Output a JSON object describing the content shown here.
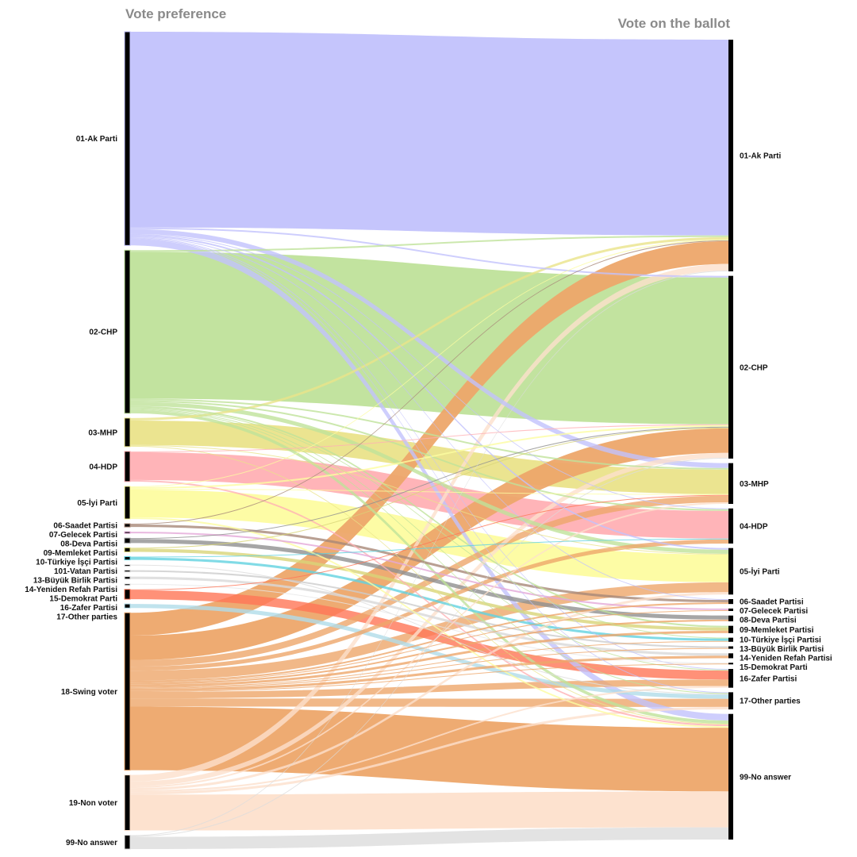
{
  "titles": {
    "left": "Vote preference",
    "right": "Vote on the ballot"
  },
  "left_nodes": [
    {
      "id": "L01",
      "label": "01-Ak Parti",
      "color": "#c2c2fc"
    },
    {
      "id": "L02",
      "label": "02-CHP",
      "color": "#bfe29a"
    },
    {
      "id": "L03",
      "label": "03-MHP",
      "color": "#eae38a"
    },
    {
      "id": "L04",
      "label": "04-HDP",
      "color": "#ffb0b4"
    },
    {
      "id": "L05",
      "label": "05-İyi Parti",
      "color": "#fdfca0"
    },
    {
      "id": "L06",
      "label": "06-Saadet Partisi",
      "color": "#a88878"
    },
    {
      "id": "L07",
      "label": "07-Gelecek Partisi",
      "color": "#e4a8d8"
    },
    {
      "id": "L08",
      "label": "08-Deva Partisi",
      "color": "#909090"
    },
    {
      "id": "L09",
      "label": "09-Memleket Partisi",
      "color": "#d8d478"
    },
    {
      "id": "L10",
      "label": "10-Türkiye İşçi Partisi",
      "color": "#62d2e0"
    },
    {
      "id": "L101",
      "label": "101-Vatan Partisi",
      "color": "#dddddd"
    },
    {
      "id": "L13",
      "label": "13-Büyük Birlik Partisi",
      "color": "#cccccc"
    },
    {
      "id": "L14",
      "label": "14-Yeniden Refah Partisi",
      "color": "#d8d8d8"
    },
    {
      "id": "L15",
      "label": "15-Demokrat Parti",
      "color": "#e6e6e6"
    },
    {
      "id": "L16",
      "label": "16-Zafer Partisi",
      "color": "#ff7656"
    },
    {
      "id": "L17",
      "label": "17-Other parties",
      "color": "#b0dce8"
    },
    {
      "id": "L18",
      "label": "18-Swing voter",
      "color": "#eda66a"
    },
    {
      "id": "L19",
      "label": "19-Non voter",
      "color": "#fde0cc"
    },
    {
      "id": "L99",
      "label": "99-No answer",
      "color": "#dcdcdc"
    }
  ],
  "right_nodes": [
    {
      "id": "R01",
      "label": "01-Ak Parti"
    },
    {
      "id": "R02",
      "label": "02-CHP"
    },
    {
      "id": "R03",
      "label": "03-MHP"
    },
    {
      "id": "R04",
      "label": "04-HDP"
    },
    {
      "id": "R05",
      "label": "05-İyi Parti"
    },
    {
      "id": "R06",
      "label": "06-Saadet Partisi"
    },
    {
      "id": "R07",
      "label": "07-Gelecek Partisi"
    },
    {
      "id": "R08",
      "label": "08-Deva Partisi"
    },
    {
      "id": "R09",
      "label": "09-Memleket Partisi"
    },
    {
      "id": "R10",
      "label": "10-Türkiye İşçi Partisi"
    },
    {
      "id": "R13",
      "label": "13-Büyük Birlik Partisi"
    },
    {
      "id": "R14",
      "label": "14-Yeniden Refah Partisi"
    },
    {
      "id": "R15",
      "label": "15-Demokrat Parti"
    },
    {
      "id": "R16",
      "label": "16-Zafer Partisi"
    },
    {
      "id": "R17",
      "label": "17-Other parties"
    },
    {
      "id": "R99",
      "label": "99-No answer"
    }
  ],
  "node_bar_color": "#000000",
  "flows": [
    [
      "L01",
      "R01",
      240
    ],
    [
      "L01",
      "R02",
      2
    ],
    [
      "L01",
      "R03",
      6
    ],
    [
      "L01",
      "R04",
      1
    ],
    [
      "L01",
      "R05",
      2
    ],
    [
      "L01",
      "R06",
      1
    ],
    [
      "L01",
      "R16",
      1
    ],
    [
      "L01",
      "R17",
      1
    ],
    [
      "L01",
      "R99",
      8
    ],
    [
      "L02",
      "R01",
      2
    ],
    [
      "L02",
      "R02",
      180
    ],
    [
      "L02",
      "R03",
      2
    ],
    [
      "L02",
      "R04",
      2
    ],
    [
      "L02",
      "R05",
      5
    ],
    [
      "L02",
      "R09",
      2
    ],
    [
      "L02",
      "R10",
      1
    ],
    [
      "L02",
      "R16",
      1
    ],
    [
      "L02",
      "R17",
      1
    ],
    [
      "L02",
      "R99",
      4
    ],
    [
      "L03",
      "R01",
      3
    ],
    [
      "L03",
      "R03",
      30
    ],
    [
      "L03",
      "R05",
      1
    ],
    [
      "L03",
      "R99",
      1
    ],
    [
      "L04",
      "R02",
      1
    ],
    [
      "L04",
      "R04",
      34
    ],
    [
      "L04",
      "R99",
      2
    ],
    [
      "L05",
      "R01",
      1
    ],
    [
      "L05",
      "R02",
      2
    ],
    [
      "L05",
      "R03",
      1
    ],
    [
      "L05",
      "R05",
      34
    ],
    [
      "L05",
      "R99",
      2
    ],
    [
      "L06",
      "R01",
      1
    ],
    [
      "L06",
      "R06",
      3
    ],
    [
      "L07",
      "R07",
      2
    ],
    [
      "L08",
      "R02",
      1
    ],
    [
      "L08",
      "R08",
      5
    ],
    [
      "L09",
      "R02",
      1
    ],
    [
      "L09",
      "R09",
      4
    ],
    [
      "L10",
      "R04",
      1
    ],
    [
      "L10",
      "R10",
      3
    ],
    [
      "L101",
      "R17",
      1
    ],
    [
      "L13",
      "R13",
      2
    ],
    [
      "L14",
      "R14",
      3
    ],
    [
      "L15",
      "R15",
      1
    ],
    [
      "L16",
      "R03",
      1
    ],
    [
      "L16",
      "R16",
      11
    ],
    [
      "L17",
      "R17",
      5
    ],
    [
      "L18",
      "R01",
      28
    ],
    [
      "L18",
      "R02",
      30
    ],
    [
      "L18",
      "R03",
      8
    ],
    [
      "L18",
      "R04",
      5
    ],
    [
      "L18",
      "R05",
      12
    ],
    [
      "L18",
      "R06",
      2
    ],
    [
      "L18",
      "R07",
      1
    ],
    [
      "L18",
      "R08",
      2
    ],
    [
      "L18",
      "R09",
      3
    ],
    [
      "L18",
      "R10",
      1
    ],
    [
      "L18",
      "R13",
      1
    ],
    [
      "L18",
      "R14",
      3
    ],
    [
      "L18",
      "R15",
      1
    ],
    [
      "L18",
      "R16",
      8
    ],
    [
      "L18",
      "R17",
      10
    ],
    [
      "L18",
      "R99",
      78
    ],
    [
      "L19",
      "R01",
      8
    ],
    [
      "L19",
      "R02",
      6
    ],
    [
      "L19",
      "R03",
      2
    ],
    [
      "L19",
      "R05",
      3
    ],
    [
      "L19",
      "R16",
      2
    ],
    [
      "L19",
      "R17",
      3
    ],
    [
      "L19",
      "R99",
      44
    ],
    [
      "L99",
      "R01",
      1
    ],
    [
      "L99",
      "R02",
      1
    ],
    [
      "L99",
      "R99",
      15
    ]
  ]
}
